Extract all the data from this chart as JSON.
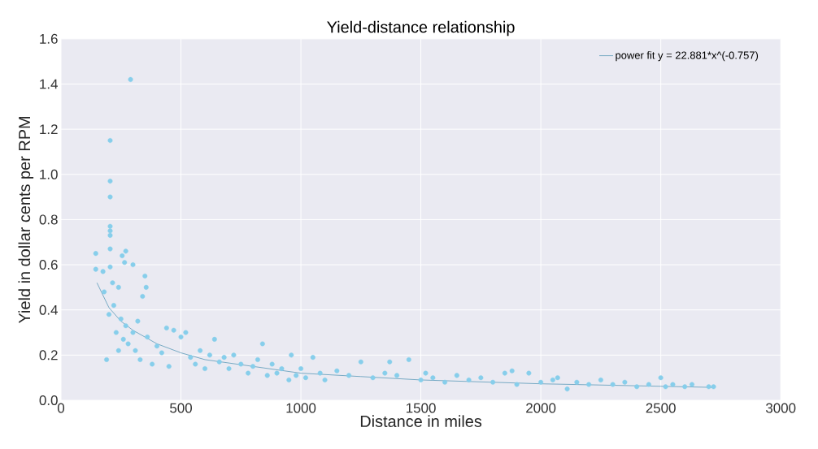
{
  "chart_data": {
    "type": "scatter",
    "title": "Yield-distance relationship",
    "xlabel": "Distance in miles",
    "ylabel": "Yield in dollar cents per RPM",
    "xlim": [
      0,
      3000
    ],
    "xticks": [
      0,
      500,
      1000,
      1500,
      2000,
      2500,
      3000
    ],
    "ylim": [
      0,
      1.6
    ],
    "yticks": [
      {
        "value": 0,
        "label": "0.0"
      },
      0.2,
      0.4,
      0.6,
      0.8,
      {
        "value": 1,
        "label": "1.0"
      },
      1.2,
      1.4,
      1.6
    ],
    "grid": true,
    "legend": "top right",
    "series": [
      {
        "color": "#87ceeb",
        "marker": "circle",
        "x": [
          290,
          205,
          205,
          205,
          205,
          205,
          205,
          205,
          145,
          270,
          255,
          145,
          175,
          265,
          300,
          205,
          215,
          240,
          350,
          355,
          340,
          190,
          240,
          180,
          200,
          220,
          230,
          250,
          260,
          270,
          280,
          300,
          310,
          320,
          330,
          360,
          380,
          400,
          420,
          440,
          450,
          470,
          500,
          520,
          540,
          560,
          580,
          600,
          620,
          640,
          660,
          680,
          700,
          720,
          750,
          780,
          800,
          820,
          840,
          860,
          880,
          900,
          920,
          950,
          960,
          980,
          1000,
          1020,
          1050,
          1080,
          1100,
          1150,
          1200,
          1250,
          1300,
          1350,
          1370,
          1400,
          1450,
          1500,
          1520,
          1550,
          1600,
          1650,
          1700,
          1750,
          1800,
          1850,
          1880,
          1900,
          1950,
          2000,
          2050,
          2070,
          2110,
          2150,
          2200,
          2250,
          2300,
          2350,
          2400,
          2450,
          2500,
          2520,
          2550,
          2600,
          2630,
          2700,
          2720
        ],
        "values": [
          1.42,
          1.15,
          0.97,
          0.9,
          0.77,
          0.75,
          0.73,
          0.67,
          0.65,
          0.66,
          0.64,
          0.58,
          0.57,
          0.61,
          0.6,
          0.59,
          0.52,
          0.5,
          0.55,
          0.5,
          0.46,
          0.18,
          0.22,
          0.48,
          0.38,
          0.42,
          0.3,
          0.36,
          0.27,
          0.33,
          0.25,
          0.3,
          0.22,
          0.35,
          0.18,
          0.28,
          0.16,
          0.24,
          0.21,
          0.32,
          0.15,
          0.31,
          0.28,
          0.3,
          0.19,
          0.16,
          0.22,
          0.14,
          0.2,
          0.27,
          0.17,
          0.19,
          0.14,
          0.2,
          0.16,
          0.12,
          0.15,
          0.18,
          0.25,
          0.11,
          0.16,
          0.12,
          0.14,
          0.09,
          0.2,
          0.11,
          0.14,
          0.1,
          0.19,
          0.12,
          0.09,
          0.13,
          0.11,
          0.17,
          0.1,
          0.12,
          0.17,
          0.11,
          0.18,
          0.09,
          0.12,
          0.1,
          0.08,
          0.11,
          0.09,
          0.1,
          0.08,
          0.12,
          0.13,
          0.07,
          0.12,
          0.08,
          0.09,
          0.1,
          0.05,
          0.08,
          0.07,
          0.09,
          0.07,
          0.08,
          0.06,
          0.07,
          0.1,
          0.06,
          0.07,
          0.06,
          0.07,
          0.06,
          0.06
        ]
      },
      {
        "name": "power fit y = 22.881*x^(-0.757)",
        "type": "line",
        "color": "#77aac4",
        "marker": "none",
        "x": [
          150,
          200,
          250,
          300,
          400,
          500,
          600,
          800,
          1000,
          1250,
          1500,
          2000,
          2500,
          2720
        ],
        "values": [
          0.52,
          0.41,
          0.35,
          0.31,
          0.25,
          0.21,
          0.18,
          0.15,
          0.12,
          0.105,
          0.09,
          0.073,
          0.062,
          0.057
        ]
      }
    ]
  }
}
